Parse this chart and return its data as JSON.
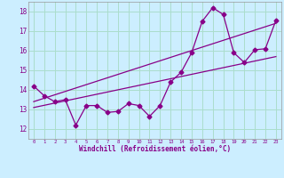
{
  "xlabel": "Windchill (Refroidissement éolien,°C)",
  "background_color": "#cceeff",
  "grid_color": "#aaddcc",
  "line_color": "#880088",
  "xlim": [
    -0.5,
    23.5
  ],
  "ylim": [
    11.5,
    18.5
  ],
  "x_ticks": [
    0,
    1,
    2,
    3,
    4,
    5,
    6,
    7,
    8,
    9,
    10,
    11,
    12,
    13,
    14,
    15,
    16,
    17,
    18,
    19,
    20,
    21,
    22,
    23
  ],
  "y_ticks": [
    12,
    13,
    14,
    15,
    16,
    17,
    18
  ],
  "main_data": [
    [
      0,
      14.2
    ],
    [
      1,
      13.7
    ],
    [
      2,
      13.4
    ],
    [
      3,
      13.5
    ],
    [
      4,
      12.2
    ],
    [
      5,
      13.2
    ],
    [
      6,
      13.2
    ],
    [
      7,
      12.85
    ],
    [
      8,
      12.9
    ],
    [
      9,
      13.3
    ],
    [
      10,
      13.2
    ],
    [
      11,
      12.65
    ],
    [
      12,
      13.2
    ],
    [
      13,
      14.4
    ],
    [
      14,
      14.9
    ],
    [
      15,
      15.9
    ],
    [
      16,
      17.5
    ],
    [
      17,
      18.2
    ],
    [
      18,
      17.85
    ],
    [
      19,
      15.9
    ],
    [
      20,
      15.4
    ],
    [
      21,
      16.05
    ],
    [
      22,
      16.1
    ],
    [
      23,
      17.55
    ]
  ],
  "regression_line1": [
    [
      0,
      13.4
    ],
    [
      23,
      17.4
    ]
  ],
  "regression_line2": [
    [
      0,
      13.1
    ],
    [
      23,
      15.7
    ]
  ]
}
